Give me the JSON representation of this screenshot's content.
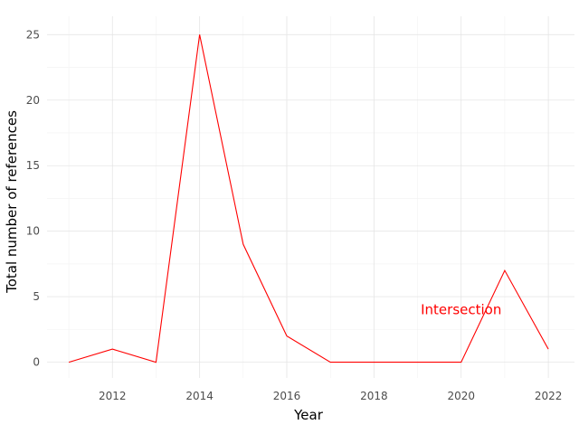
{
  "chart_data": {
    "type": "line",
    "title": "",
    "xlabel": "Year",
    "ylabel": "Total number of references",
    "xlim": [
      2010.5,
      2022.6
    ],
    "ylim": [
      -1.2,
      26.4
    ],
    "x_ticks": [
      2012,
      2014,
      2016,
      2018,
      2020,
      2022
    ],
    "y_ticks": [
      0,
      5,
      10,
      15,
      20,
      25
    ],
    "grid": true,
    "legend": "none",
    "series": [
      {
        "color": "#ff0000",
        "x": [
          2011,
          2012,
          2013,
          2014,
          2015,
          2016,
          2017,
          2018,
          2019,
          2020,
          2021,
          2022
        ],
        "y": [
          0,
          1,
          0,
          25,
          9,
          2,
          0,
          0,
          0,
          0,
          7,
          1
        ]
      }
    ],
    "annotations": [
      {
        "text": "Intersection",
        "x": 2020,
        "y": 4,
        "color": "#ff0000"
      }
    ]
  }
}
